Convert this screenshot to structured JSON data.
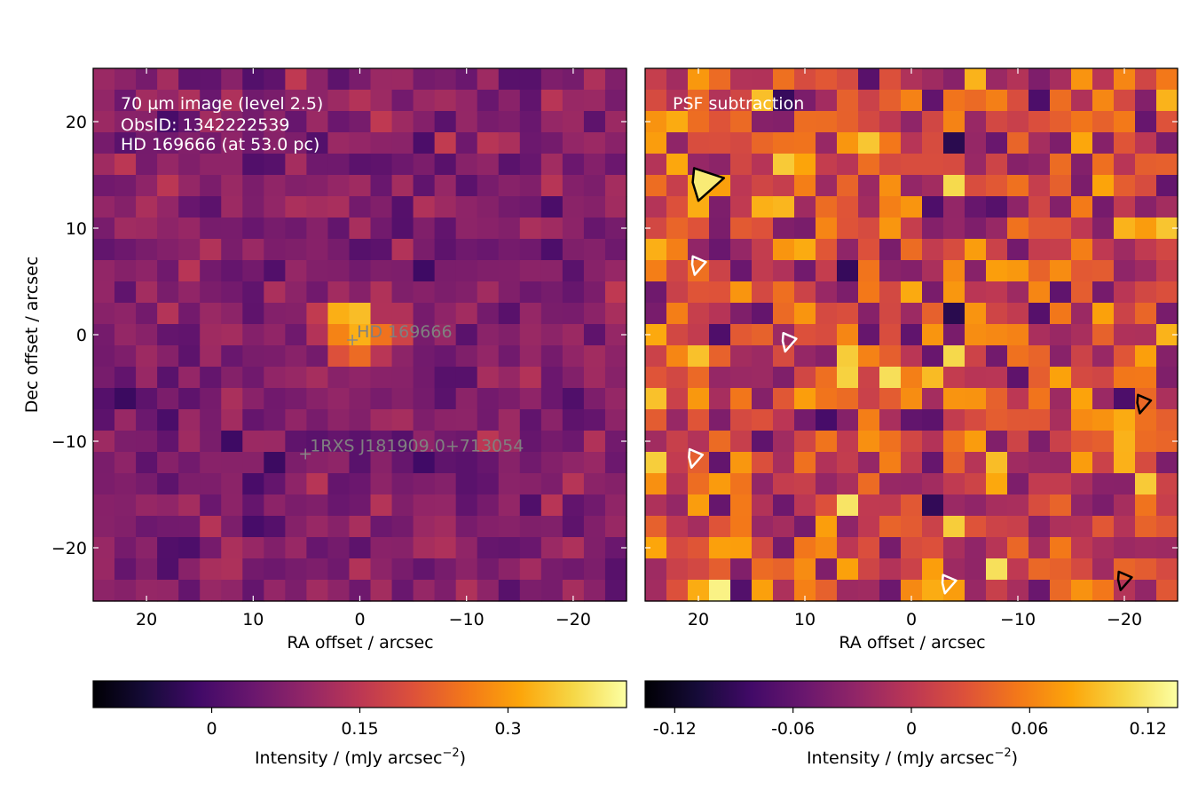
{
  "chart_data": [
    {
      "type": "heatmap",
      "panel": "left",
      "annotations": [
        "70 µm image (level 2.5)",
        "ObsID: 1342222539",
        "HD 169666 (at 53.0 pc)"
      ],
      "xlabel": "RA offset / arcsec",
      "ylabel": "Dec offset / arcsec",
      "xlim": [
        25,
        -25
      ],
      "ylim": [
        -25,
        25
      ],
      "xticks": [
        20,
        10,
        0,
        -10,
        -20
      ],
      "xtick_labels": [
        "20",
        "10",
        "0",
        "−10",
        "−20"
      ],
      "yticks": [
        20,
        10,
        0,
        -10,
        -20
      ],
      "ytick_labels": [
        "20",
        "10",
        "0",
        "−10",
        "−20"
      ],
      "pixel_size_arcsec": 2,
      "colormap": "inferno",
      "colorbar": {
        "label": "Intensity / (mJy arcsec",
        "label_exponent": "−2",
        "label_close": ")",
        "vmin": -0.12,
        "vmax": 0.42,
        "ticks": [
          0,
          0.15,
          0.3
        ],
        "tick_labels": [
          "0",
          "0.15",
          "0.3"
        ]
      },
      "markers": [
        {
          "label": "HD 169666",
          "ra": 0.7,
          "dec": -0.5
        },
        {
          "label": "1RXS J181909.0+713054",
          "ra": 5.1,
          "dec": -11.2
        }
      ],
      "source": {
        "ra": 0.7,
        "dec": 0.2,
        "peak": 0.4
      }
    },
    {
      "type": "heatmap",
      "panel": "right",
      "annotations": [
        "PSF subtraction"
      ],
      "xlabel": "RA offset / arcsec",
      "xlim": [
        25,
        -25
      ],
      "ylim": [
        -25,
        25
      ],
      "xticks": [
        20,
        10,
        0,
        -10,
        -20
      ],
      "xtick_labels": [
        "20",
        "10",
        "0",
        "−10",
        "−20"
      ],
      "pixel_size_arcsec": 2,
      "colormap": "inferno",
      "colorbar": {
        "label": "Intensity / (mJy arcsec",
        "label_exponent": "−2",
        "label_close": ")",
        "vmin": -0.135,
        "vmax": 0.135,
        "ticks": [
          -0.12,
          -0.06,
          0,
          0.06,
          0.12
        ],
        "tick_labels": [
          "-0.12",
          "-0.06",
          "0",
          "0.06",
          "0.12"
        ]
      },
      "contours": [
        {
          "color": "#000000",
          "ra": 19.2,
          "dec": 14.3
        },
        {
          "color": "#000000",
          "ra": -21.8,
          "dec": -6.4
        },
        {
          "color": "#000000",
          "ra": -20.0,
          "dec": -23.0
        },
        {
          "color": "#ffffff",
          "ra": 20.0,
          "dec": 6.6
        },
        {
          "color": "#ffffff",
          "ra": 11.5,
          "dec": -0.6
        },
        {
          "color": "#ffffff",
          "ra": 20.3,
          "dec": -11.5
        },
        {
          "color": "#ffffff",
          "ra": -3.5,
          "dec": -23.3
        }
      ]
    }
  ]
}
